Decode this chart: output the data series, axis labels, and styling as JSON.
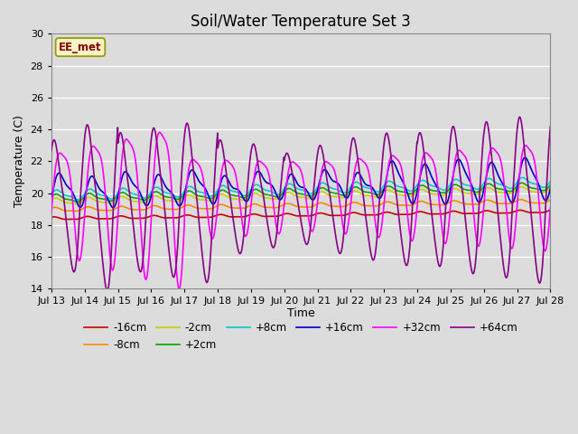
{
  "title": "Soil/Water Temperature Set 3",
  "xlabel": "Time",
  "ylabel": "Temperature (C)",
  "ylim": [
    14,
    30
  ],
  "xlim": [
    0,
    15
  ],
  "yticks": [
    14,
    16,
    18,
    20,
    22,
    24,
    26,
    28,
    30
  ],
  "xtick_labels": [
    "Jul 13",
    "Jul 14",
    "Jul 15",
    "Jul 16",
    "Jul 17",
    "Jul 18",
    "Jul 19",
    "Jul 20",
    "Jul 21",
    "Jul 22",
    "Jul 23",
    "Jul 24",
    "Jul 25",
    "Jul 26",
    "Jul 27",
    "Jul 28"
  ],
  "background_color": "#dcdcdc",
  "series_colors": {
    "-16cm": "#cc0000",
    "-8cm": "#ff8800",
    "-2cm": "#cccc00",
    "+2cm": "#00aa00",
    "+8cm": "#00cccc",
    "+16cm": "#0000cc",
    "+32cm": "#ff00ff",
    "+64cm": "#880088"
  },
  "legend_label": "EE_met",
  "title_fontsize": 12
}
